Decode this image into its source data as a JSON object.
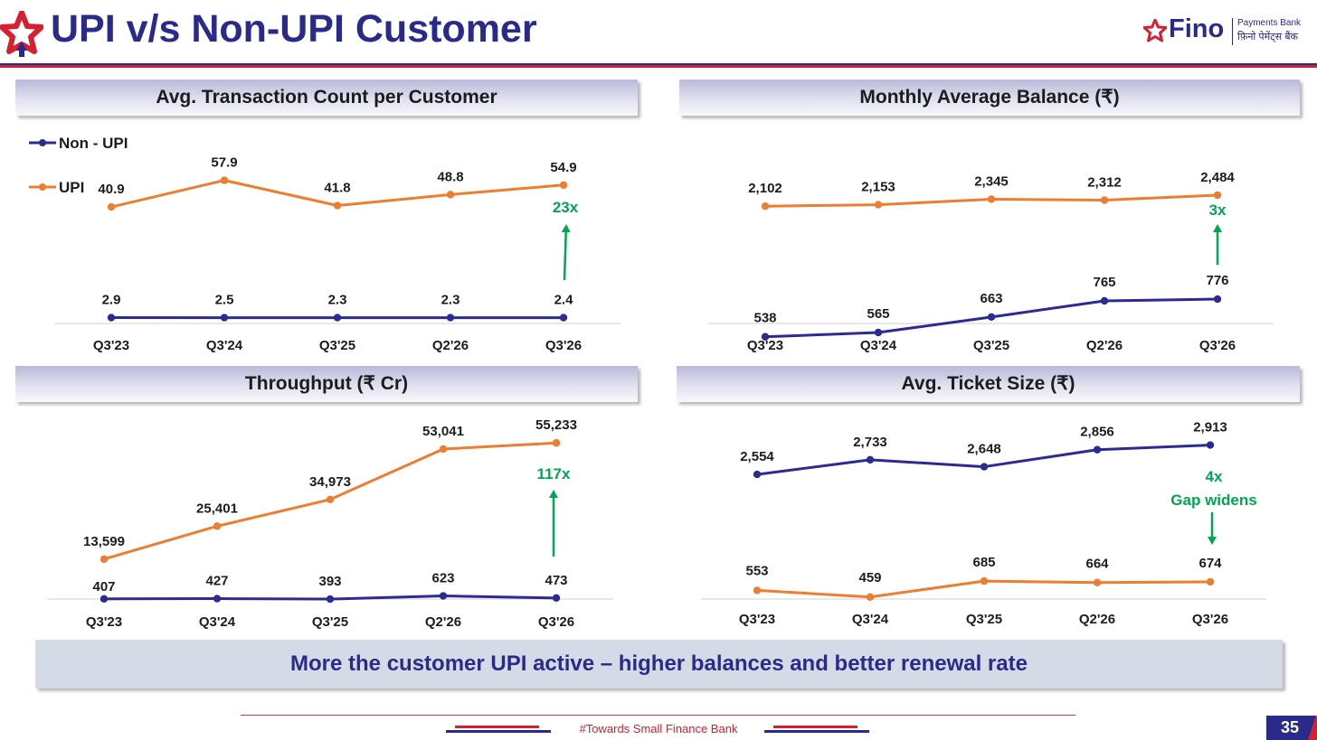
{
  "header": {
    "title": "UPI v/s Non-UPI Customer"
  },
  "brand": {
    "name": "Fino",
    "sub_en": "Payments Bank",
    "sub_hi": "फ़िनो पेमेंट्स बैंक"
  },
  "colors": {
    "upi": "#ed7d31",
    "non_upi": "#2e2a94",
    "accent_green": "#00a651",
    "brand_blue": "#2a2a8a",
    "brand_red": "#d42030"
  },
  "chart_data": [
    {
      "type": "line",
      "title": "Avg. Transaction Count per Customer",
      "categories": [
        "Q3'23",
        "Q3'24",
        "Q3'25",
        "Q2'26",
        "Q3'26"
      ],
      "legend": [
        "Non - UPI",
        "UPI"
      ],
      "series": [
        {
          "name": "Non - UPI",
          "values": [
            2.9,
            2.5,
            2.3,
            2.3,
            2.4
          ],
          "labels": [
            "2.9",
            "2.5",
            "2.3",
            "2.3",
            "2.4"
          ]
        },
        {
          "name": "UPI",
          "values": [
            40.9,
            57.9,
            41.8,
            48.8,
            54.9
          ],
          "labels": [
            "40.9",
            "57.9",
            "41.8",
            "48.8",
            "54.9"
          ]
        }
      ],
      "annotation": "23x",
      "ylim": [
        0,
        70
      ]
    },
    {
      "type": "line",
      "title": "Monthly Average Balance (₹)",
      "categories": [
        "Q3'23",
        "Q3'24",
        "Q3'25",
        "Q2'26",
        "Q3'26"
      ],
      "series": [
        {
          "name": "Non - UPI",
          "values": [
            538,
            565,
            663,
            765,
            776
          ],
          "labels": [
            "538",
            "565",
            "663",
            "765",
            "776"
          ]
        },
        {
          "name": "UPI",
          "values": [
            2102,
            2153,
            2345,
            2312,
            2484
          ],
          "labels": [
            "2,102",
            "2,153",
            "2,345",
            "2,312",
            "2,484"
          ]
        }
      ],
      "annotation": "3x",
      "ylim": [
        0,
        3000
      ]
    },
    {
      "type": "line",
      "title": "Throughput (₹ Cr)",
      "categories": [
        "Q3'23",
        "Q3'24",
        "Q3'25",
        "Q2'26",
        "Q3'26"
      ],
      "series": [
        {
          "name": "Non - UPI",
          "values": [
            407,
            427,
            393,
            623,
            473
          ],
          "labels": [
            "407",
            "427",
            "393",
            "623",
            "473"
          ]
        },
        {
          "name": "UPI",
          "values": [
            13599,
            25401,
            34973,
            53041,
            55233
          ],
          "labels": [
            "13,599",
            "25,401",
            "34,973",
            "53,041",
            "55,233"
          ]
        }
      ],
      "annotation": "117x",
      "ylim": [
        0,
        60000
      ]
    },
    {
      "type": "line",
      "title": "Avg. Ticket Size (₹)",
      "categories": [
        "Q3'23",
        "Q3'24",
        "Q3'25",
        "Q2'26",
        "Q3'26"
      ],
      "series": [
        {
          "name": "Non - UPI",
          "values": [
            2554,
            2733,
            2648,
            2856,
            2913
          ],
          "labels": [
            "2,554",
            "2,733",
            "2,648",
            "2,856",
            "2,913"
          ]
        },
        {
          "name": "UPI",
          "values": [
            553,
            459,
            685,
            664,
            674
          ],
          "labels": [
            "553",
            "459",
            "685",
            "664",
            "674"
          ]
        }
      ],
      "annotation": "4x",
      "annotation2": "Gap widens",
      "ylim": [
        0,
        3200
      ]
    }
  ],
  "banner": {
    "text": "More the customer UPI active – higher balances and better renewal rate"
  },
  "footer": {
    "text": "#Towards Small Finance Bank",
    "page_number": "35"
  }
}
